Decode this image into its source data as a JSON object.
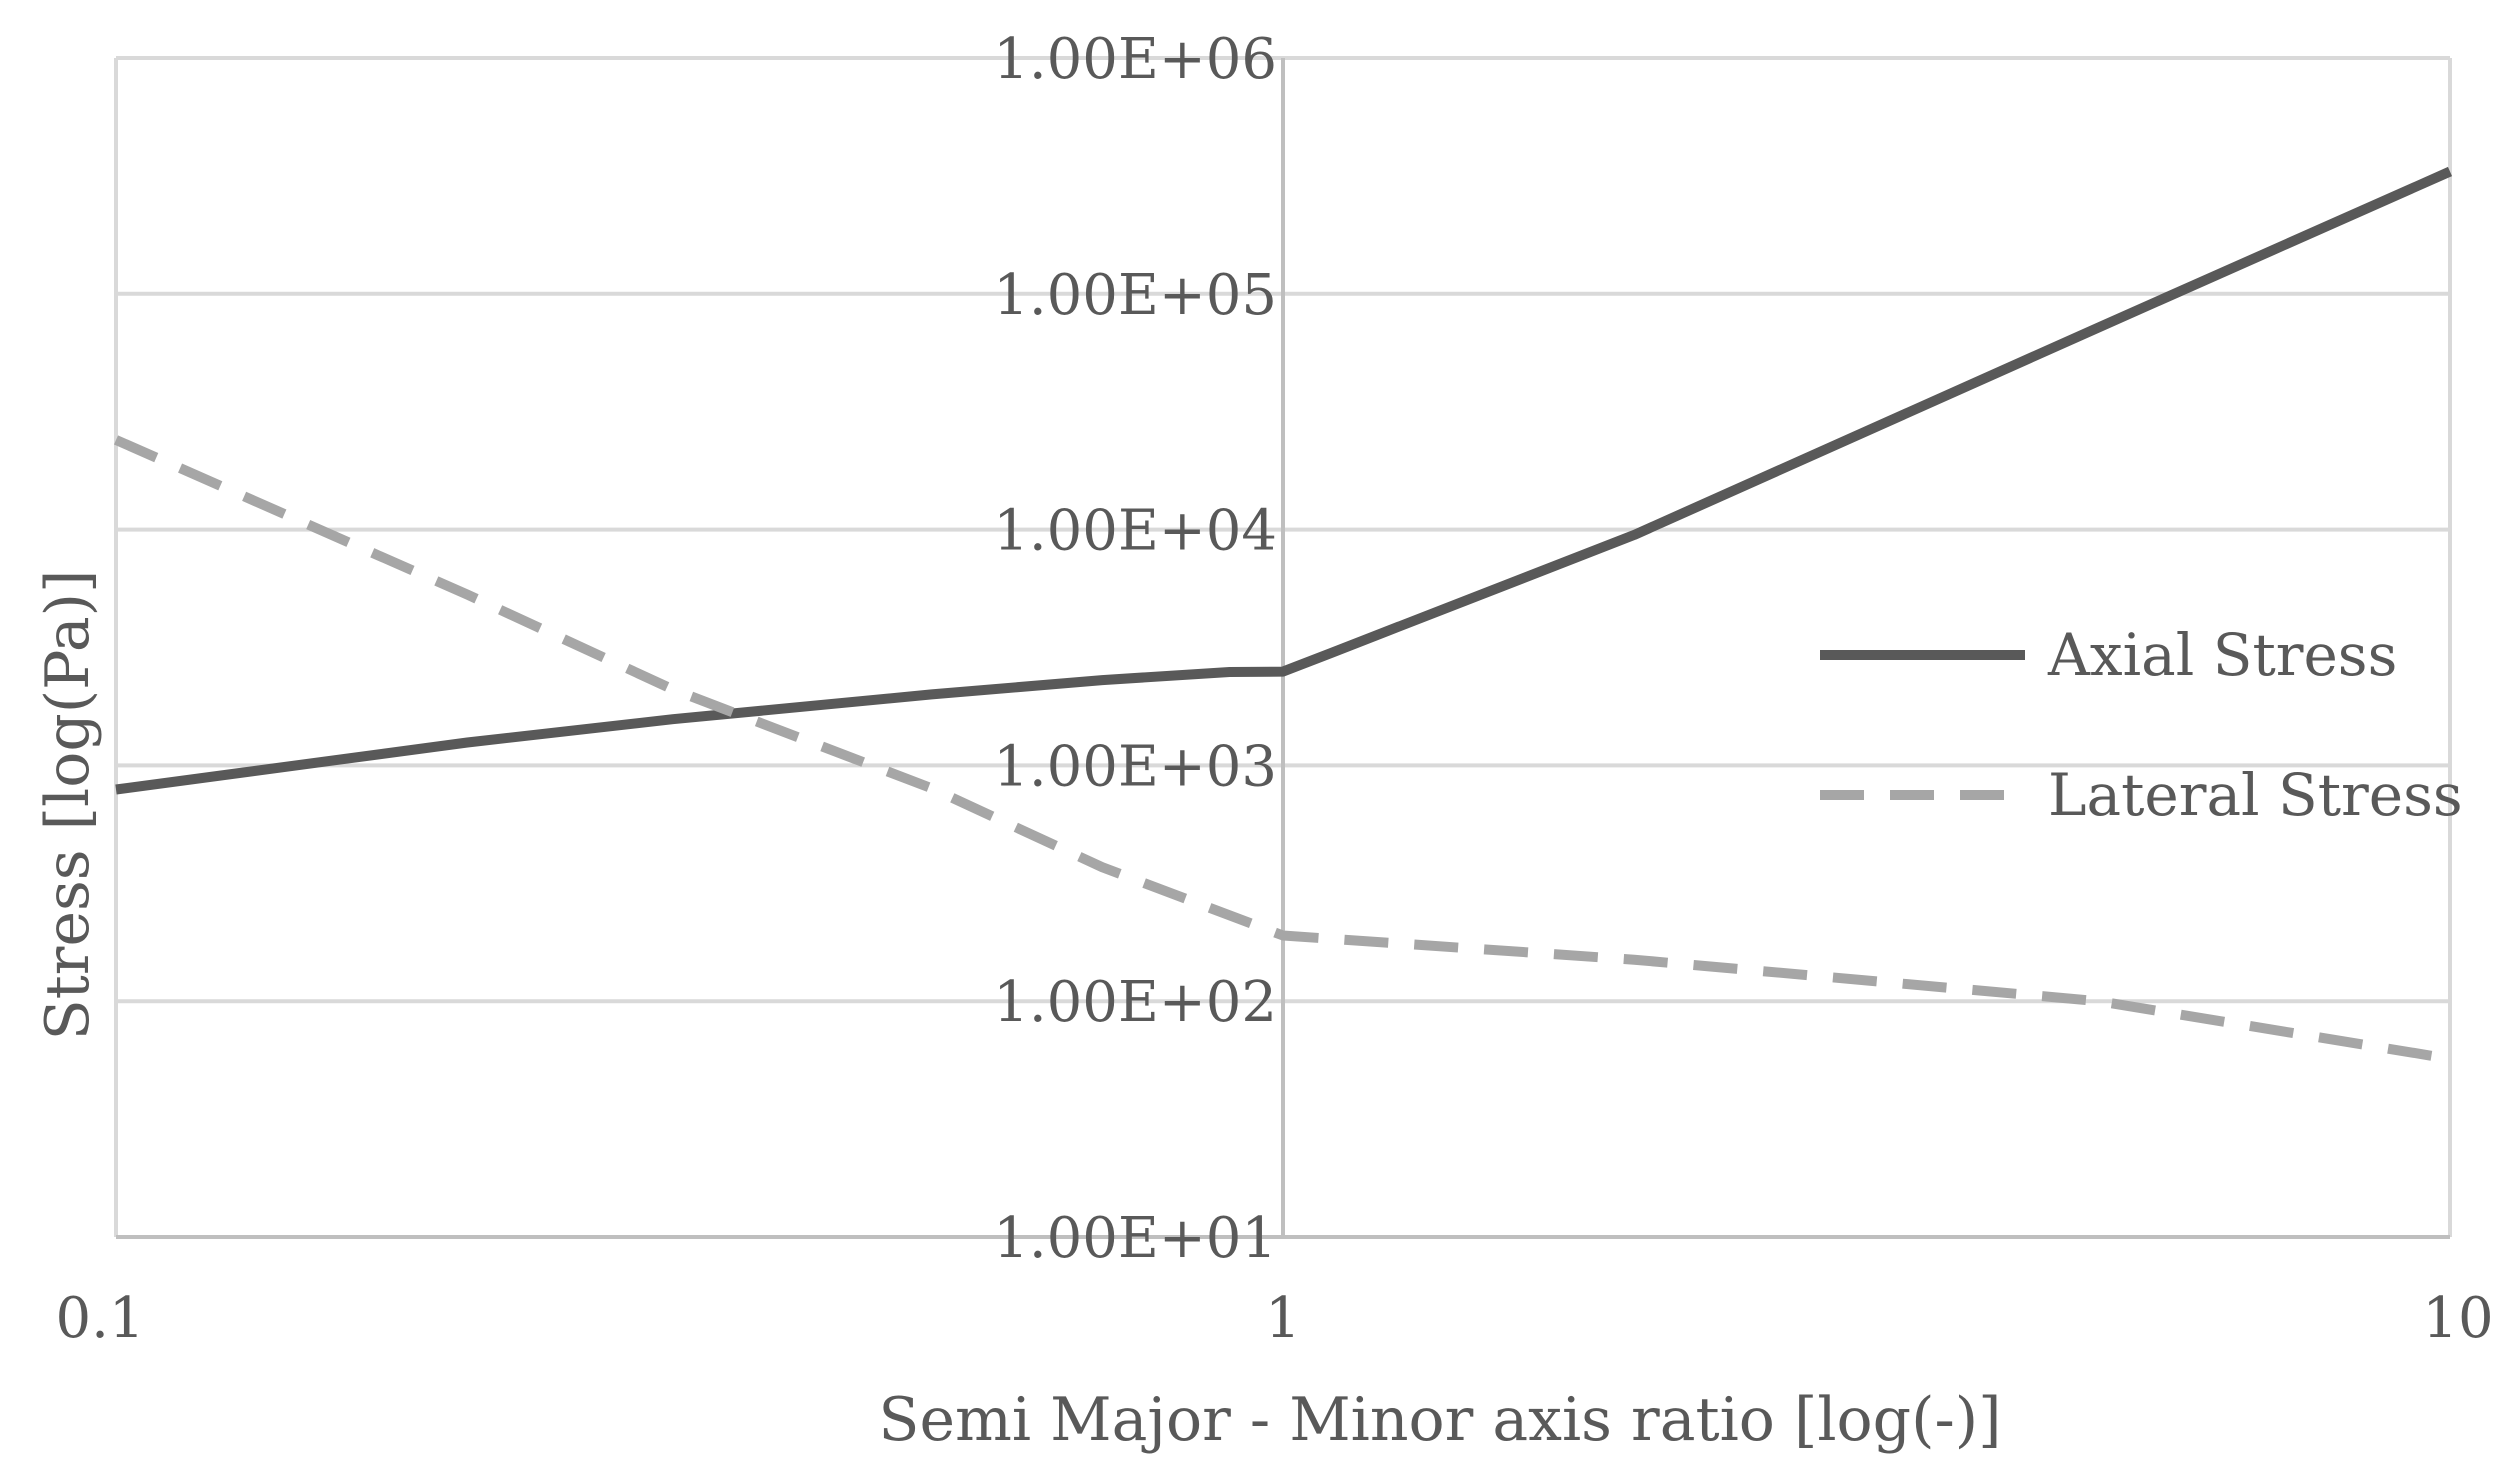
{
  "chart_data": {
    "type": "line",
    "title": "",
    "xlabel": "Semi Major - Minor axis ratio [log(-)]",
    "ylabel": "Stress [log(Pa)]",
    "x_scale": "log",
    "y_scale": "log",
    "xlim": [
      0.1,
      10
    ],
    "ylim": [
      10,
      1000000
    ],
    "x_ticks": [
      {
        "value": 0.1,
        "label": "0.1"
      },
      {
        "value": 1,
        "label": "1"
      },
      {
        "value": 10,
        "label": "10"
      }
    ],
    "y_ticks": [
      {
        "value": 10,
        "label": "1.00E+01"
      },
      {
        "value": 100,
        "label": "1.00E+02"
      },
      {
        "value": 1000,
        "label": "1.00E+03"
      },
      {
        "value": 10000,
        "label": "1.00E+04"
      },
      {
        "value": 100000,
        "label": "1.00E+05"
      },
      {
        "value": 1000000,
        "label": "1.00E+06"
      }
    ],
    "grid": true,
    "legend_position": "right",
    "series": [
      {
        "name": "Axial Stress",
        "style": "solid",
        "color": "#595959",
        "points": [
          {
            "x": 0.1,
            "y": 790
          },
          {
            "x": 0.2,
            "y": 1250
          },
          {
            "x": 0.3,
            "y": 1570
          },
          {
            "x": 0.5,
            "y": 2000
          },
          {
            "x": 0.7,
            "y": 2300
          },
          {
            "x": 0.9,
            "y": 2490
          },
          {
            "x": 1.0,
            "y": 2500
          },
          {
            "x": 1.1,
            "y": 3000
          },
          {
            "x": 2,
            "y": 9500
          },
          {
            "x": 5,
            "y": 72000
          },
          {
            "x": 10,
            "y": 330000
          }
        ]
      },
      {
        "name": "Lateral Stress",
        "style": "dashed",
        "color": "#a6a6a6",
        "points": [
          {
            "x": 0.1,
            "y": 24000
          },
          {
            "x": 0.2,
            "y": 5300
          },
          {
            "x": 0.3,
            "y": 2100
          },
          {
            "x": 0.5,
            "y": 800
          },
          {
            "x": 0.7,
            "y": 370
          },
          {
            "x": 1.0,
            "y": 190
          },
          {
            "x": 2,
            "y": 150
          },
          {
            "x": 5,
            "y": 100
          },
          {
            "x": 10,
            "y": 57
          }
        ]
      }
    ]
  }
}
